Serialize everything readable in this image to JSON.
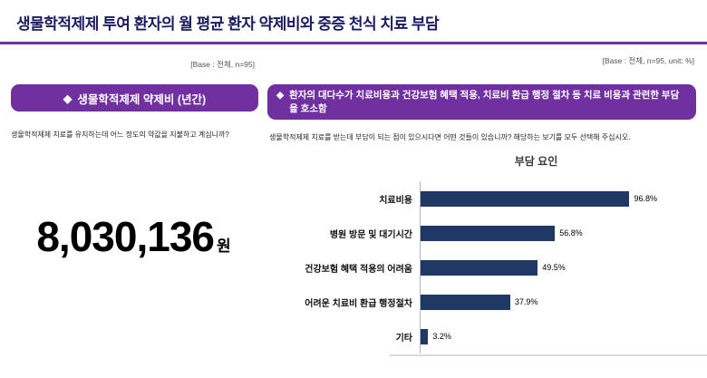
{
  "page": {
    "title": "생물학적제제 투여 환자의 월 평균 환자 약제비와 중증 천식 치료 부담"
  },
  "left": {
    "base_note": "[Base : 전체, n=95]",
    "box_bullet": "◆",
    "box_label": "생물학적제제 약제비 (년간)",
    "question": "생물학적제제 치료를 유지하는데 어느 정도의 약값을 지불하고 계십니까?",
    "amount": "8,030,136",
    "amount_unit": "원"
  },
  "right": {
    "base_note": "[Base : 전체, n=95, unit: %]",
    "box_bullet": "◆",
    "box_label": "환자의 대다수가 치료비용과 건강보험 혜택 적용, 치료비 환급 행정 절차 등 치료 비용과 관련한 부담을 호소함",
    "question": "생물학적제제 치료를 받는데 부담이 되는 점이 있으시다면 어떤 것들이 있습니까? 해당하는 보기를 모두 선택해 주십시오."
  },
  "chart_data": {
    "type": "bar",
    "orientation": "horizontal",
    "title": "부담 요인",
    "categories": [
      "치료비용",
      "병원 방문 및 대기시간",
      "건강보험 혜택 적용의 어려움",
      "어려운 치료비 환급 행정절차",
      "기타"
    ],
    "values": [
      96.8,
      56.8,
      49.5,
      37.9,
      3.2
    ],
    "unit": "%",
    "xlim": [
      0,
      100
    ],
    "grid": false,
    "legend": false,
    "bar_color": "#1f3864"
  },
  "colors": {
    "accent_purple": "#7030a0",
    "title_navy": "#1b1b60",
    "bar_navy": "#1f3864",
    "axis_gray": "#d9d9d9"
  }
}
